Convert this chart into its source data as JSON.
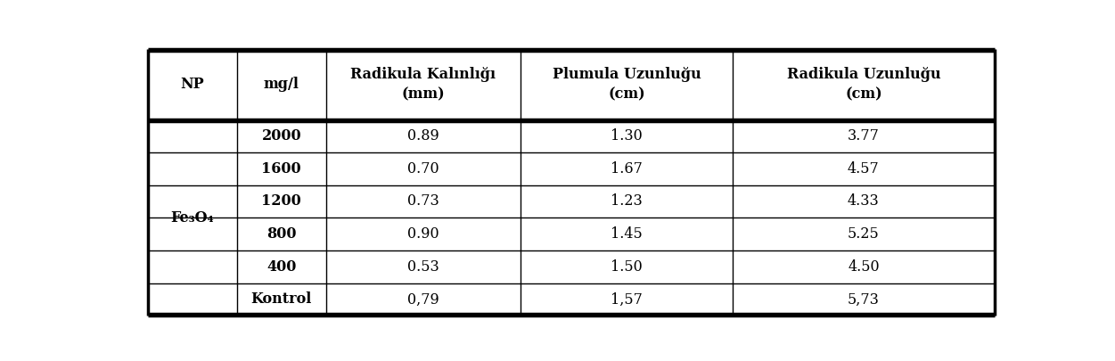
{
  "col_headers_line1": [
    "NP",
    "mg/l",
    "Radikula Kalınlığı",
    "Plumula Uzunluğu",
    "Radikula Uzunluğu"
  ],
  "col_headers_line2": [
    "",
    "",
    "(mm)",
    "(cm)",
    "(cm)"
  ],
  "np_label_main": "Fe",
  "np_label_sub3": "3",
  "np_label_O": "O",
  "np_label_sub4": "4",
  "rows": [
    {
      "mg": "2000",
      "col3": "0.89",
      "col4": "1.30",
      "col5": "3.77"
    },
    {
      "mg": "1600",
      "col3": "0.70",
      "col4": "1.67",
      "col5": "4.57"
    },
    {
      "mg": "1200",
      "col3": "0.73",
      "col4": "1.23",
      "col5": "4.33"
    },
    {
      "mg": "800",
      "col3": "0.90",
      "col4": "1.45",
      "col5": "5.25"
    },
    {
      "mg": "400",
      "col3": "0.53",
      "col4": "1.50",
      "col5": "4.50"
    },
    {
      "mg": "Kontrol",
      "col3": "0,79",
      "col4": "1,57",
      "col5": "5,73"
    }
  ],
  "bg_color": "#ffffff",
  "header_fontsize": 11.5,
  "data_fontsize": 11.5,
  "fig_width": 12.51,
  "fig_height": 4.05,
  "dpi": 100
}
